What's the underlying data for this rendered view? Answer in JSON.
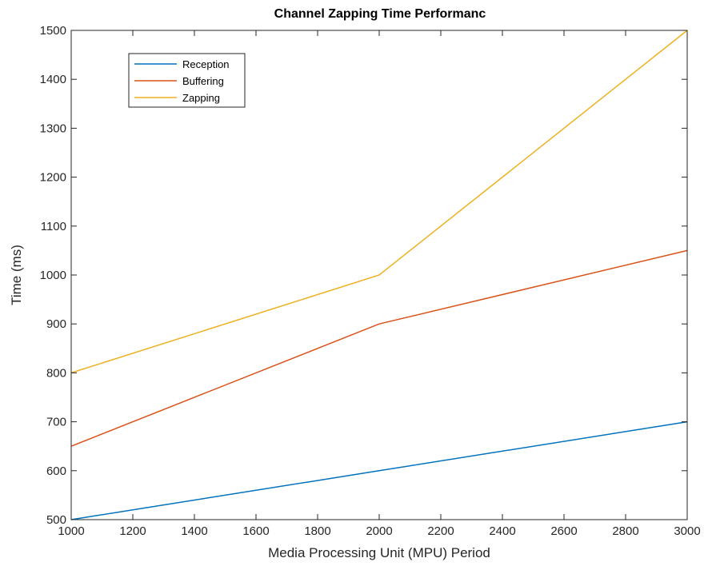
{
  "chart_data": {
    "type": "line",
    "title": "Channel Zapping Time Performanc",
    "xlabel": "Media Processing Unit (MPU) Period",
    "ylabel": "Time (ms)",
    "xlim": [
      1000,
      3000
    ],
    "ylim": [
      500,
      1500
    ],
    "xticks": [
      1000,
      1200,
      1400,
      1600,
      1800,
      2000,
      2200,
      2400,
      2600,
      2800,
      3000
    ],
    "yticks": [
      500,
      600,
      700,
      800,
      900,
      1000,
      1100,
      1200,
      1300,
      1400,
      1500
    ],
    "x": [
      1000,
      2000,
      3000
    ],
    "series": [
      {
        "name": "Reception",
        "values": [
          500,
          600,
          700
        ],
        "color": "#0072BD"
      },
      {
        "name": "Buffering",
        "values": [
          650,
          900,
          1050
        ],
        "color": "#D95319"
      },
      {
        "name": "Zapping",
        "values": [
          800,
          1000,
          1500
        ],
        "color": "#EDB120"
      }
    ],
    "grid": false,
    "legend_position": "top-left"
  }
}
